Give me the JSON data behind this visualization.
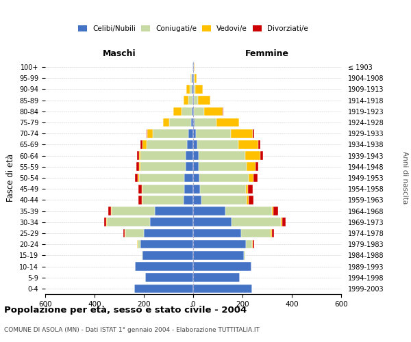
{
  "age_groups": [
    "0-4",
    "5-9",
    "10-14",
    "15-19",
    "20-24",
    "25-29",
    "30-34",
    "35-39",
    "40-44",
    "45-49",
    "50-54",
    "55-59",
    "60-64",
    "65-69",
    "70-74",
    "75-79",
    "80-84",
    "85-89",
    "90-94",
    "95-99",
    "100+"
  ],
  "birth_years": [
    "1999-2003",
    "1994-1998",
    "1989-1993",
    "1984-1988",
    "1979-1983",
    "1974-1978",
    "1969-1973",
    "1964-1968",
    "1959-1963",
    "1954-1958",
    "1949-1953",
    "1944-1948",
    "1939-1943",
    "1934-1938",
    "1929-1933",
    "1924-1928",
    "1919-1923",
    "1914-1918",
    "1909-1913",
    "1904-1908",
    "≤ 1903"
  ],
  "male_celibi": [
    240,
    195,
    235,
    205,
    215,
    200,
    175,
    155,
    40,
    35,
    35,
    30,
    30,
    25,
    20,
    8,
    6,
    4,
    5,
    5,
    2
  ],
  "male_coniugati": [
    0,
    0,
    0,
    2,
    10,
    75,
    175,
    175,
    165,
    170,
    185,
    185,
    185,
    165,
    145,
    90,
    40,
    15,
    8,
    2,
    0
  ],
  "male_vedovi": [
    0,
    0,
    0,
    0,
    2,
    2,
    2,
    2,
    3,
    3,
    4,
    5,
    5,
    15,
    20,
    25,
    35,
    20,
    15,
    3,
    0
  ],
  "male_divorziati": [
    0,
    0,
    0,
    0,
    2,
    5,
    8,
    12,
    15,
    15,
    12,
    10,
    8,
    8,
    5,
    0,
    0,
    0,
    0,
    0,
    0
  ],
  "female_celibi": [
    240,
    190,
    235,
    205,
    215,
    195,
    155,
    130,
    32,
    28,
    25,
    22,
    22,
    18,
    12,
    5,
    4,
    4,
    3,
    3,
    2
  ],
  "female_coniugati": [
    0,
    0,
    0,
    5,
    25,
    120,
    200,
    190,
    185,
    185,
    200,
    195,
    190,
    165,
    140,
    90,
    40,
    15,
    5,
    2,
    0
  ],
  "female_vedovi": [
    0,
    0,
    0,
    0,
    3,
    5,
    5,
    5,
    8,
    10,
    20,
    35,
    60,
    80,
    90,
    90,
    75,
    50,
    30,
    10,
    3
  ],
  "female_divorziati": [
    0,
    0,
    0,
    2,
    5,
    8,
    15,
    20,
    20,
    20,
    15,
    12,
    10,
    8,
    4,
    2,
    2,
    0,
    0,
    0,
    0
  ],
  "color_celibi": "#4472c4",
  "color_coniugati": "#c8daa4",
  "color_vedovi": "#ffc000",
  "color_divorziati": "#cc0000",
  "title": "Popolazione per età, sesso e stato civile - 2004",
  "subtitle": "COMUNE DI ASOLA (MN) - Dati ISTAT 1° gennaio 2004 - Elaborazione TUTTITALIA.IT",
  "xlabel_left": "Maschi",
  "xlabel_right": "Femmine",
  "ylabel": "Fasce di età",
  "ylabel_right": "Anni di nascita",
  "xlim": 600,
  "bg_color": "#ffffff",
  "grid_color": "#cccccc"
}
